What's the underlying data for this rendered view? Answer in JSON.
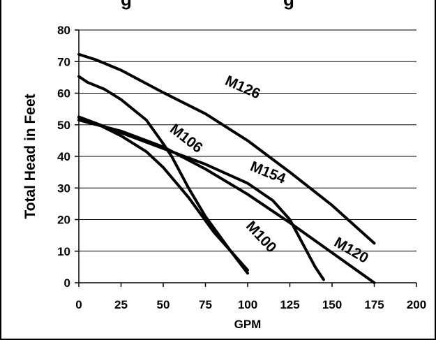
{
  "chart_data": {
    "type": "line",
    "title": "",
    "xlabel": "GPM",
    "ylabel": "Total Head in Feet",
    "xlim": [
      0,
      200
    ],
    "ylim": [
      0,
      80
    ],
    "xticks": [
      0,
      25,
      50,
      75,
      100,
      125,
      150,
      175,
      200
    ],
    "yticks": [
      0,
      10,
      20,
      30,
      40,
      50,
      60,
      70,
      80
    ],
    "grid": "horizontal",
    "legend": "none",
    "line_color": "#000000",
    "series": [
      {
        "name": "M126",
        "points": [
          [
            0,
            72.3
          ],
          [
            10,
            70.6
          ],
          [
            25,
            67.3
          ],
          [
            50,
            60.2
          ],
          [
            75,
            53.5
          ],
          [
            100,
            45
          ],
          [
            125,
            35
          ],
          [
            150,
            24.5
          ],
          [
            175,
            12.5
          ]
        ]
      },
      {
        "name": "M106",
        "points": [
          [
            0,
            65.3
          ],
          [
            5,
            63.5
          ],
          [
            15,
            61.3
          ],
          [
            25,
            58
          ],
          [
            40,
            51.5
          ],
          [
            50,
            44
          ],
          [
            55,
            40
          ],
          [
            65,
            30
          ],
          [
            75,
            21
          ],
          [
            90,
            10
          ],
          [
            100,
            3
          ]
        ]
      },
      {
        "name": "M154",
        "points": [
          [
            0,
            52.3
          ],
          [
            10,
            50.5
          ],
          [
            25,
            47.5
          ],
          [
            50,
            42.5
          ],
          [
            75,
            37.5
          ],
          [
            100,
            31.5
          ],
          [
            115,
            26
          ],
          [
            125,
            20
          ],
          [
            135,
            10
          ],
          [
            140,
            5
          ],
          [
            145,
            1
          ]
        ]
      },
      {
        "name": "M120",
        "points": [
          [
            0,
            51.5
          ],
          [
            25,
            48
          ],
          [
            50,
            43
          ],
          [
            75,
            36
          ],
          [
            100,
            28
          ],
          [
            125,
            19
          ],
          [
            150,
            9.5
          ],
          [
            175,
            0
          ]
        ]
      },
      {
        "name": "M100",
        "points": [
          [
            0,
            52.5
          ],
          [
            10,
            50.5
          ],
          [
            25,
            46.5
          ],
          [
            40,
            41.5
          ],
          [
            50,
            36.5
          ],
          [
            65,
            27
          ],
          [
            80,
            16
          ],
          [
            100,
            4
          ]
        ]
      }
    ]
  }
}
